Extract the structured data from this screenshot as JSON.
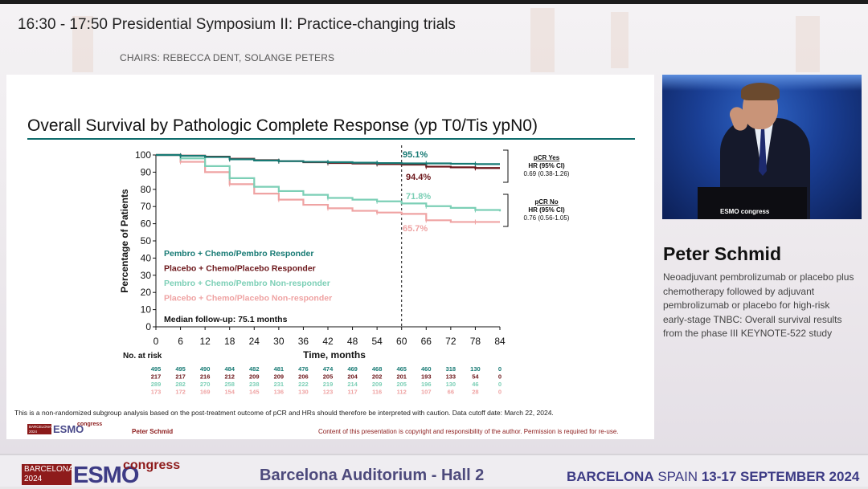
{
  "session": {
    "title": "16:30 - 17:50  Presidential Symposium II: Practice-changing trials",
    "chairs": "CHAIRS: REBECCA DENT, SOLANGE PETERS"
  },
  "slide": {
    "title": "Overall Survival by Pathologic Complete Response (yp T0/Tis ypN0)",
    "footnote": "This is a non-randomized subgroup analysis based on the post-treatment outcome of pCR and HRs should therefore be interpreted with caution. Data cutoff date: March 22, 2024.",
    "presenter": "Peter Schmid",
    "copyright": "Content of this presentation is copyright and responsibility of the author. Permission is required for re-use.",
    "logo": {
      "line1": "BARCELONA",
      "line2": "2024",
      "word": "ESMO",
      "congress": "congress"
    }
  },
  "chart_data": {
    "type": "line",
    "ylabel": "Percentage of Patients",
    "xlabel": "Time, months",
    "x_ticks": [
      0,
      6,
      12,
      18,
      24,
      30,
      36,
      42,
      48,
      54,
      60,
      66,
      72,
      78,
      84
    ],
    "y_ticks": [
      0,
      10,
      20,
      30,
      40,
      50,
      60,
      70,
      80,
      90,
      100
    ],
    "xlim": [
      0,
      84
    ],
    "ylim": [
      0,
      100
    ],
    "reference_line_x": 60,
    "series": [
      {
        "name": "Pembro + Chemo/Pembro Responder",
        "color": "#177a74",
        "x": [
          0,
          6,
          12,
          18,
          24,
          30,
          36,
          42,
          48,
          54,
          60,
          66,
          72,
          78,
          84
        ],
        "y": [
          100,
          99.5,
          98.8,
          97.5,
          96.8,
          96.4,
          96.0,
          95.8,
          95.5,
          95.3,
          95.1,
          95.1,
          94.9,
          94.7,
          94.7
        ]
      },
      {
        "name": "Placebo + Chemo/Placebo Responder",
        "color": "#6b1519",
        "x": [
          0,
          6,
          12,
          18,
          24,
          30,
          36,
          42,
          48,
          54,
          60,
          66,
          72,
          78,
          84
        ],
        "y": [
          100,
          99.6,
          99.0,
          97.8,
          97.0,
          96.4,
          95.8,
          95.3,
          95.0,
          94.7,
          94.4,
          93.2,
          92.8,
          92.4,
          92.4
        ]
      },
      {
        "name": "Pembro + Chemo/Pembro Non-responder",
        "color": "#7ccfb6",
        "x": [
          0,
          6,
          12,
          18,
          24,
          30,
          36,
          42,
          48,
          54,
          60,
          66,
          72,
          78,
          84
        ],
        "y": [
          100,
          98.0,
          93.5,
          86.5,
          81.5,
          79.0,
          76.8,
          75.0,
          74.0,
          73.0,
          71.8,
          70.2,
          69.2,
          68.0,
          67.2
        ]
      },
      {
        "name": "Placebo + Chemo/Placebo Non-responder",
        "color": "#efa3a3",
        "x": [
          0,
          6,
          12,
          18,
          24,
          30,
          36,
          42,
          48,
          54,
          60,
          66,
          72,
          78,
          84
        ],
        "y": [
          100,
          96.0,
          90.0,
          83.0,
          77.5,
          74.0,
          71.0,
          69.0,
          67.5,
          66.5,
          65.7,
          62.0,
          61.0,
          61.0,
          61.0
        ]
      }
    ],
    "annotations": [
      {
        "text": "95.1%",
        "color": "#177a74"
      },
      {
        "text": "94.4%",
        "color": "#6b1519"
      },
      {
        "text": "71.8%",
        "color": "#7ccfb6"
      },
      {
        "text": "65.7%",
        "color": "#efa3a3"
      }
    ],
    "hr_boxes": [
      {
        "title": "pCR Yes",
        "label": "HR (95% CI)",
        "value": "0.69 (0.38-1.26)"
      },
      {
        "title": "pCR No",
        "label": "HR (95% CI)",
        "value": "0.76 (0.56-1.05)"
      }
    ],
    "median_followup": "Median follow-up: 75.1 months",
    "at_risk": {
      "label": "No. at risk",
      "rows": [
        {
          "color": "#177a74",
          "values": [
            "495",
            "495",
            "490",
            "484",
            "482",
            "481",
            "476",
            "474",
            "469",
            "468",
            "465",
            "460",
            "318",
            "130",
            "0"
          ]
        },
        {
          "color": "#6b1519",
          "values": [
            "217",
            "217",
            "216",
            "212",
            "209",
            "209",
            "206",
            "205",
            "204",
            "202",
            "201",
            "193",
            "133",
            "54",
            "0"
          ]
        },
        {
          "color": "#7ccfb6",
          "values": [
            "289",
            "282",
            "270",
            "258",
            "238",
            "231",
            "222",
            "219",
            "214",
            "209",
            "205",
            "196",
            "130",
            "46",
            "0"
          ]
        },
        {
          "color": "#efa3a3",
          "values": [
            "173",
            "172",
            "169",
            "154",
            "145",
            "136",
            "130",
            "123",
            "117",
            "116",
            "112",
            "107",
            "66",
            "28",
            "0"
          ]
        }
      ]
    }
  },
  "speaker": {
    "name": "Peter Schmid",
    "description": "Neoadjuvant pembrolizumab or placebo plus chemotherapy followed by adjuvant pembrolizumab or placebo for high-risk early-stage TNBC: Overall survival results from the phase III KEYNOTE-522 study",
    "podium_logo": "ESMO congress"
  },
  "footer": {
    "logo": {
      "line1": "BARCELONA",
      "line2": "2024",
      "word": "ESMO",
      "congress": "congress"
    },
    "venue": "Barcelona Auditorium - Hall 2",
    "city_bold": "BARCELONA",
    "city_country": " SPAIN ",
    "dates": "13-17 SEPTEMBER 2024"
  }
}
